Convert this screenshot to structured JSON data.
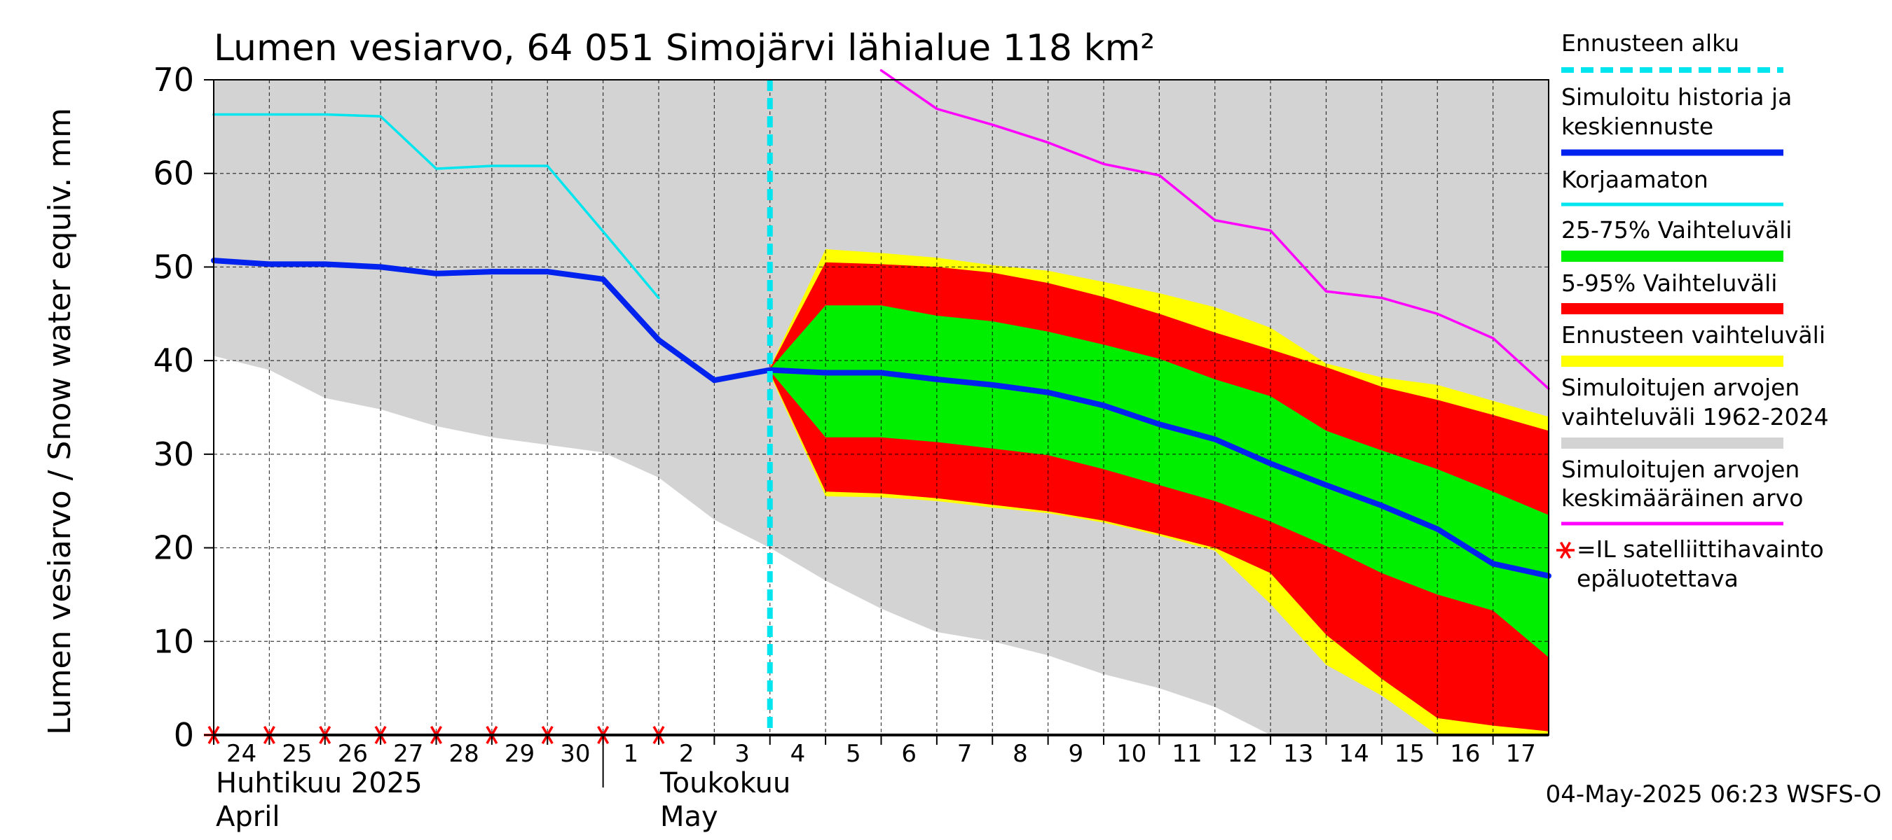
{
  "chart_data": {
    "type": "area",
    "title": "Lumen vesiarvo, 64 051 Simojärvi lähialue 118 km²",
    "ylabel": "Lumen vesiarvo / Snow water equiv.    mm",
    "ylim": [
      0,
      70
    ],
    "yticks": [
      0,
      10,
      20,
      30,
      40,
      50,
      60,
      70
    ],
    "grid": true,
    "x_dates": [
      "2025-04-24",
      "2025-04-25",
      "2025-04-26",
      "2025-04-27",
      "2025-04-28",
      "2025-04-29",
      "2025-04-30",
      "2025-05-01",
      "2025-05-02",
      "2025-05-03",
      "2025-05-04",
      "2025-05-05",
      "2025-05-06",
      "2025-05-07",
      "2025-05-08",
      "2025-05-09",
      "2025-05-10",
      "2025-05-11",
      "2025-05-12",
      "2025-05-13",
      "2025-05-14",
      "2025-05-15",
      "2025-05-16",
      "2025-05-17",
      "2025-05-18"
    ],
    "x_tick_labels": [
      "24",
      "25",
      "26",
      "27",
      "28",
      "29",
      "30",
      "1",
      "2",
      "3",
      "4",
      "5",
      "6",
      "7",
      "8",
      "9",
      "10",
      "11",
      "12",
      "13",
      "14",
      "15",
      "16",
      "17"
    ],
    "month_labels": {
      "april_fi": "Huhtikuu  2025",
      "april_en": "April",
      "may_fi": "Toukokuu",
      "may_en": "May"
    },
    "forecast_start": "2025-05-04",
    "series": [
      {
        "name": "Simuloitujen arvojen vaihteluväli 1962-2024",
        "color": "#d3d3d3",
        "lower": [
          40.5,
          39.0,
          36.0,
          34.8,
          33.0,
          31.8,
          31.0,
          30.2,
          27.5,
          23.0,
          20.0,
          16.5,
          13.5,
          11.0,
          10.0,
          8.5,
          6.5,
          5.0,
          3.0,
          0,
          0,
          0,
          0,
          0,
          0
        ],
        "upper": [
          70,
          70,
          70,
          70,
          70,
          70,
          70,
          70,
          70,
          70,
          70,
          70,
          70,
          70,
          70,
          70,
          70,
          70,
          70,
          70,
          70,
          70,
          70,
          70,
          70
        ]
      },
      {
        "name": "Ennusteen vaihteluväli",
        "color": "#ffff00",
        "x_dates": [
          "2025-05-04",
          "2025-05-05",
          "2025-05-06",
          "2025-05-07",
          "2025-05-08",
          "2025-05-09",
          "2025-05-10",
          "2025-05-11",
          "2025-05-12",
          "2025-05-13",
          "2025-05-14",
          "2025-05-15",
          "2025-05-16",
          "2025-05-17",
          "2025-05-18"
        ],
        "lower": [
          38.5,
          25.5,
          25.4,
          25.0,
          24.3,
          23.7,
          22.7,
          21.3,
          19.7,
          14.0,
          7.5,
          4.2,
          0,
          0,
          0
        ],
        "upper": [
          39.3,
          51.9,
          51.5,
          51.0,
          50.2,
          49.6,
          48.4,
          47.2,
          45.7,
          43.5,
          39.7,
          38.2,
          37.4,
          35.7,
          34.0
        ]
      },
      {
        "name": "5-95% Vaihteluväli",
        "color": "#ff0000",
        "x_dates": [
          "2025-05-04",
          "2025-05-05",
          "2025-05-06",
          "2025-05-07",
          "2025-05-08",
          "2025-05-09",
          "2025-05-10",
          "2025-05-11",
          "2025-05-12",
          "2025-05-13",
          "2025-05-14",
          "2025-05-15",
          "2025-05-16",
          "2025-05-17",
          "2025-05-18"
        ],
        "lower": [
          38.7,
          26.0,
          25.8,
          25.3,
          24.6,
          23.9,
          22.9,
          21.5,
          20.0,
          17.3,
          10.7,
          6.0,
          1.8,
          1.0,
          0.4
        ],
        "upper": [
          39.2,
          50.5,
          50.3,
          50.0,
          49.4,
          48.3,
          46.8,
          45.0,
          43.0,
          41.2,
          39.3,
          37.2,
          35.8,
          34.2,
          32.5
        ]
      },
      {
        "name": "25-75% Vaihteluväli",
        "color": "#00ee00",
        "x_dates": [
          "2025-05-04",
          "2025-05-05",
          "2025-05-06",
          "2025-05-07",
          "2025-05-08",
          "2025-05-09",
          "2025-05-10",
          "2025-05-11",
          "2025-05-12",
          "2025-05-13",
          "2025-05-14",
          "2025-05-15",
          "2025-05-16",
          "2025-05-17",
          "2025-05-18"
        ],
        "lower": [
          38.9,
          31.8,
          31.8,
          31.3,
          30.6,
          29.9,
          28.4,
          26.7,
          25.0,
          22.8,
          20.2,
          17.3,
          15.0,
          13.3,
          8.3
        ],
        "upper": [
          39.1,
          45.9,
          45.9,
          44.8,
          44.2,
          43.1,
          41.7,
          40.2,
          38.0,
          36.2,
          32.5,
          30.4,
          28.4,
          26.0,
          23.5
        ]
      },
      {
        "name": "Simuloitujen arvojen keskimääräinen arvo",
        "color": "#ff00ff",
        "x_dates": [
          "2025-05-06",
          "2025-05-07",
          "2025-05-08",
          "2025-05-09",
          "2025-05-10",
          "2025-05-11",
          "2025-05-12",
          "2025-05-13",
          "2025-05-14",
          "2025-05-15",
          "2025-05-16",
          "2025-05-17",
          "2025-05-18"
        ],
        "values": [
          71.0,
          66.9,
          65.2,
          63.3,
          61.0,
          59.8,
          55.0,
          53.9,
          47.4,
          46.7,
          45.0,
          42.4,
          37.0
        ]
      },
      {
        "name": "Korjaamaton",
        "color": "#00e5ee",
        "x_dates": [
          "2025-04-24",
          "2025-04-25",
          "2025-04-26",
          "2025-04-27",
          "2025-04-28",
          "2025-04-29",
          "2025-04-30",
          "2025-05-01",
          "2025-05-02"
        ],
        "values": [
          66.3,
          66.3,
          66.3,
          66.1,
          60.5,
          60.8,
          60.8,
          53.8,
          46.7
        ]
      },
      {
        "name": "Simuloitu historia ja keskiennuste",
        "color": "#0022ee",
        "x_dates": [
          "2025-04-24",
          "2025-04-25",
          "2025-04-26",
          "2025-04-27",
          "2025-04-28",
          "2025-04-29",
          "2025-04-30",
          "2025-05-01",
          "2025-05-02",
          "2025-05-03",
          "2025-05-04",
          "2025-05-05",
          "2025-05-06",
          "2025-05-07",
          "2025-05-08",
          "2025-05-09",
          "2025-05-10",
          "2025-05-11",
          "2025-05-12",
          "2025-05-13",
          "2025-05-14",
          "2025-05-15",
          "2025-05-16",
          "2025-05-17",
          "2025-05-18"
        ],
        "values": [
          50.7,
          50.3,
          50.3,
          50.0,
          49.3,
          49.5,
          49.5,
          48.7,
          42.2,
          37.9,
          39.0,
          38.7,
          38.7,
          38.0,
          37.4,
          36.6,
          35.2,
          33.2,
          31.6,
          29.0,
          26.7,
          24.5,
          22.0,
          18.3,
          17.0
        ]
      },
      {
        "name": "=IL satelliittihavainto epäluotettava",
        "color": "#ff0000",
        "x_dates": [
          "2025-04-24",
          "2025-04-25",
          "2025-04-26",
          "2025-04-27",
          "2025-04-28",
          "2025-04-29",
          "2025-04-30",
          "2025-05-01",
          "2025-05-02"
        ],
        "values": [
          0,
          0,
          0,
          0,
          0,
          0,
          0,
          0,
          0
        ]
      }
    ],
    "legend": {
      "placement": "right",
      "items": [
        {
          "key": "forecast_start",
          "lines": [
            "Ennusteen alku"
          ],
          "color": "#00e5ee",
          "style": "dashed"
        },
        {
          "key": "sim_mean",
          "lines": [
            "Simuloitu historia ja",
            "keskiennuste"
          ],
          "color": "#0022ee",
          "style": "line"
        },
        {
          "key": "uncorrected",
          "lines": [
            "Korjaamaton"
          ],
          "color": "#00e5ee",
          "style": "line"
        },
        {
          "key": "p25_75",
          "lines": [
            "25-75% Vaihteluväli"
          ],
          "color": "#00ee00",
          "style": "thick"
        },
        {
          "key": "p5_95",
          "lines": [
            "5-95% Vaihteluväli"
          ],
          "color": "#ff0000",
          "style": "thick"
        },
        {
          "key": "fc_range",
          "lines": [
            "Ennusteen vaihteluväli"
          ],
          "color": "#ffff00",
          "style": "thick"
        },
        {
          "key": "hist_range",
          "lines": [
            "Simuloitujen arvojen",
            "vaihteluväli 1962-2024"
          ],
          "color": "#d3d3d3",
          "style": "thick"
        },
        {
          "key": "hist_mean",
          "lines": [
            "Simuloitujen arvojen",
            "keskimääräinen arvo"
          ],
          "color": "#ff00ff",
          "style": "line"
        },
        {
          "key": "satellite",
          "lines": [
            "=IL satelliittihavainto",
            "epäluotettava"
          ],
          "color": "#ff0000",
          "style": "star"
        }
      ]
    },
    "footer": "04-May-2025 06:23 WSFS-O"
  }
}
